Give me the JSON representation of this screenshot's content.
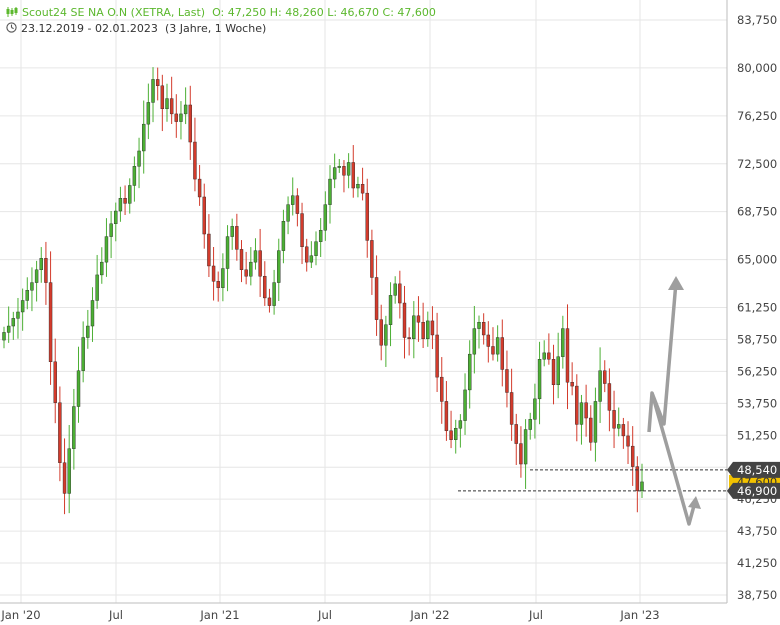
{
  "header": {
    "line1": {
      "instrument": "Scout24 SE NA O.N (XETRA, Last)",
      "ohlc": "O: 47,250  H: 48,260  L: 46,670  C: 47,600"
    },
    "line2": {
      "date_range": "23.12.2019 - 02.01.2023",
      "period": "(3 Jahre, 1 Woche)"
    }
  },
  "colors": {
    "up": "#4caf34",
    "down": "#d33b2c",
    "grid": "#e6e6e6",
    "annotation_arrow": "#9e9e9e",
    "close_tag": "#f2c200",
    "level_tag": "#444444"
  },
  "chart_data": {
    "type": "candlestick",
    "title": "Scout24 SE NA O.N (XETRA, Last)",
    "interval": "weekly",
    "ylim": [
      38.75,
      83.75
    ],
    "y_ticks": [
      "83,750",
      "80,000",
      "76,250",
      "72,500",
      "68,750",
      "65,000",
      "61,250",
      "58,750",
      "56,250",
      "53,750",
      "51,250",
      "48,750",
      "46,250",
      "43,750",
      "41,250",
      "38,750"
    ],
    "x_ticks": [
      "Jan '20",
      "Jul",
      "Jan '21",
      "Jul",
      "Jan '22",
      "Jul",
      "Jan '23"
    ],
    "ohlc_last": {
      "open": 47.25,
      "high": 48.26,
      "low": 46.67,
      "close": 47.6
    },
    "close_series": [
      59.3,
      59.8,
      60.4,
      60.9,
      61.8,
      62.6,
      63.2,
      64.2,
      65.1,
      63.2,
      57.0,
      53.8,
      49.1,
      46.7,
      50.2,
      53.5,
      56.3,
      58.9,
      59.8,
      61.8,
      63.8,
      64.8,
      66.8,
      67.8,
      68.8,
      69.8,
      69.4,
      70.8,
      72.3,
      73.5,
      75.6,
      77.3,
      79.1,
      78.6,
      76.8,
      77.6,
      76.4,
      75.8,
      76.4,
      77.1,
      74.2,
      71.3,
      69.9,
      67.0,
      64.5,
      63.3,
      62.8,
      64.3,
      66.8,
      67.6,
      65.8,
      64.2,
      63.7,
      64.8,
      65.7,
      63.7,
      62.0,
      61.4,
      63.2,
      65.7,
      68.0,
      69.3,
      70.0,
      68.6,
      66.0,
      64.8,
      65.3,
      66.4,
      67.3,
      69.3,
      71.3,
      72.2,
      72.3,
      71.6,
      72.6,
      70.6,
      70.9,
      70.2,
      66.5,
      63.6,
      60.3,
      58.3,
      59.9,
      62.2,
      63.1,
      61.6,
      58.9,
      58.8,
      60.6,
      60.1,
      58.8,
      60.2,
      59.1,
      55.8,
      53.9,
      51.6,
      50.9,
      51.8,
      52.4,
      54.8,
      57.6,
      59.6,
      60.1,
      59.1,
      58.2,
      57.6,
      58.9,
      56.4,
      54.6,
      52.1,
      50.6,
      49.0,
      51.7,
      52.5,
      54.1,
      57.2,
      57.7,
      57.2,
      55.2,
      57.4,
      59.6,
      55.4,
      55.1,
      52.1,
      53.8,
      52.6,
      50.7,
      53.9,
      56.3,
      55.3,
      53.2,
      51.8,
      52.1,
      51.2,
      50.4,
      48.8,
      46.9,
      47.6
    ],
    "horizontal_levels": [
      {
        "label": "48,540",
        "value": 48.54
      },
      {
        "label": "46,900",
        "value": 46.9
      }
    ],
    "last_close_label": "47,600",
    "annotations": [
      {
        "kind": "arrow-up",
        "description": "bullish scenario"
      },
      {
        "kind": "arrow-down",
        "description": "bearish scenario"
      }
    ]
  }
}
